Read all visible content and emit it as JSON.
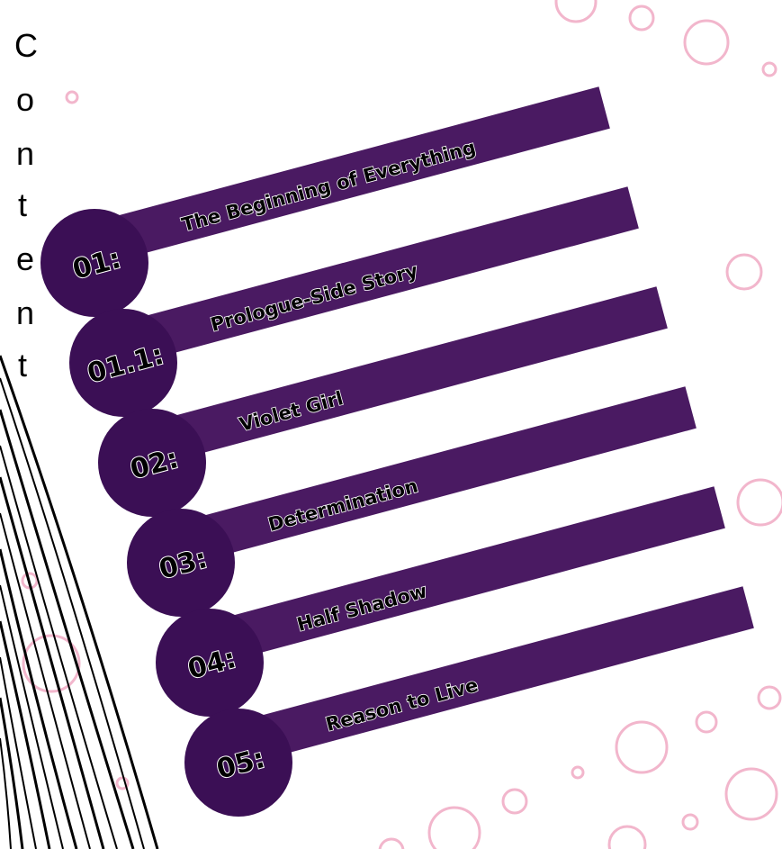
{
  "title": [
    "C",
    "o",
    "n",
    "t",
    "e",
    "n",
    "t"
  ],
  "colors": {
    "bar": "#4a1a62",
    "circle": "#3b0f55",
    "bubble": "#f2b6cc",
    "text": "#000000",
    "text_outline": "#ffffff"
  },
  "chapters": [
    {
      "number": "01:",
      "title": "The Beginning of Everything"
    },
    {
      "number": "01.1:",
      "title": "Prologue-Side Story"
    },
    {
      "number": "02:",
      "title": "Violet Girl"
    },
    {
      "number": "03:",
      "title": "Determination"
    },
    {
      "number": "04:",
      "title": "Half Shadow"
    },
    {
      "number": "05:",
      "title": "Reason to Live"
    }
  ]
}
